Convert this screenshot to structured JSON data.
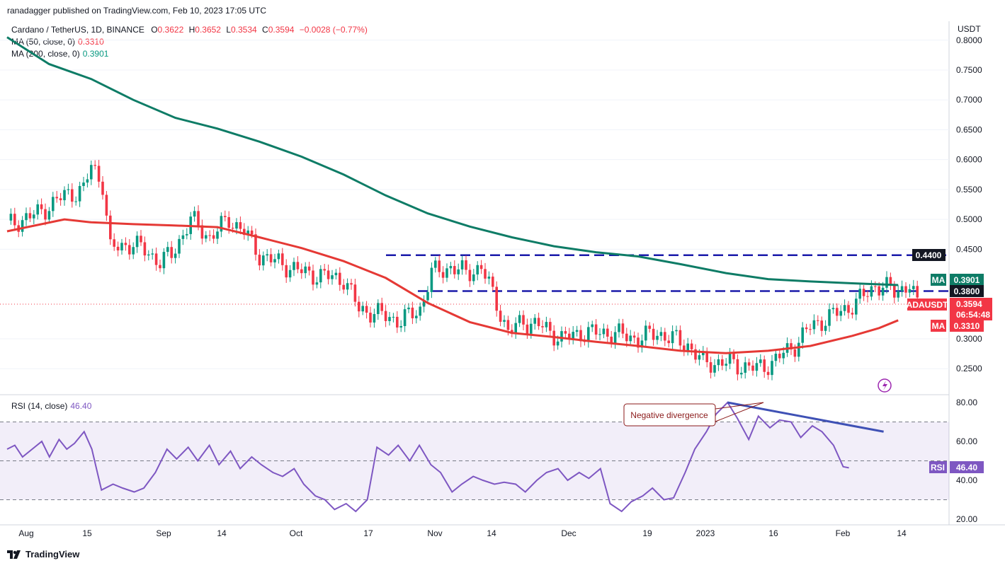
{
  "header": {
    "publisher": "ranadagger published on TradingView.com, Feb 10, 2023 17:05 UTC",
    "symbol": "Cardano / TetherUS, 1D, BINANCE",
    "o_label": "O",
    "o_value": "0.3622",
    "h_label": "H",
    "h_value": "0.3652",
    "l_label": "L",
    "l_value": "0.3534",
    "c_label": "C",
    "c_value": "0.3594",
    "change": "−0.0028 (−0.77%)",
    "ma50_label": "MA (50, close, 0)",
    "ma50_value": "0.3310",
    "ma200_label": "MA (200, close, 0)",
    "ma200_value": "0.3901",
    "rsi_label": "RSI (14, close)",
    "rsi_value": "46.40"
  },
  "colors": {
    "up": "#089981",
    "down": "#f23645",
    "ma50": "#e53935",
    "ma200": "#0e7c66",
    "rsi": "#7e57c2",
    "level": "#1a1aaa",
    "divergence": "#3f51b5"
  },
  "icons": {
    "logo": "tradingview-logo-icon",
    "replay": "lightning-circle-icon"
  },
  "price_axis": {
    "unit": "USDT",
    "ticks": [
      "0.8000",
      "0.7500",
      "0.7000",
      "0.6500",
      "0.6000",
      "0.5500",
      "0.5000",
      "0.4500",
      "0.3000",
      "0.2500"
    ],
    "tags": {
      "level_high": "0.4400",
      "ma200_label": "MA",
      "ma200_value": "0.3901",
      "level_mid": "0.3800",
      "symbol": "ADAUSDT",
      "last": "0.3594",
      "countdown": "06:54:48",
      "ma50_label": "MA",
      "ma50_value": "0.3310"
    }
  },
  "rsi_axis": {
    "ticks": [
      "80.00",
      "60.00",
      "40.00",
      "20.00"
    ],
    "tag_label": "RSI",
    "tag_value": "46.40"
  },
  "time_axis": {
    "ticks": [
      "Aug",
      "15",
      "Sep",
      "14",
      "Oct",
      "17",
      "Nov",
      "14",
      "Dec",
      "19",
      "2023",
      "16",
      "Feb",
      "14"
    ]
  },
  "annotation": "Negative divergence",
  "footer": {
    "brand": "TradingView"
  },
  "chart_data": {
    "type": "candlestick",
    "symbol": "ADAUSDT",
    "x": [
      "2022-08-01",
      "2023-02-10"
    ],
    "y_price_range": [
      0.23,
      0.81
    ],
    "levels": [
      0.44,
      0.38
    ],
    "ma50_points": [
      [
        0,
        0.48
      ],
      [
        15,
        0.5
      ],
      [
        22,
        0.495
      ],
      [
        33,
        0.492
      ],
      [
        43,
        0.49
      ],
      [
        55,
        0.487
      ],
      [
        66,
        0.47
      ],
      [
        77,
        0.452
      ],
      [
        88,
        0.43
      ],
      [
        99,
        0.402
      ],
      [
        110,
        0.36
      ],
      [
        121,
        0.328
      ],
      [
        132,
        0.31
      ],
      [
        143,
        0.303
      ],
      [
        154,
        0.295
      ],
      [
        165,
        0.288
      ],
      [
        176,
        0.28
      ],
      [
        188,
        0.276
      ],
      [
        199,
        0.28
      ],
      [
        210,
        0.288
      ],
      [
        221,
        0.305
      ],
      [
        228,
        0.318
      ],
      [
        233,
        0.331
      ]
    ],
    "ma200_points": [
      [
        0,
        0.805
      ],
      [
        11,
        0.76
      ],
      [
        22,
        0.735
      ],
      [
        33,
        0.7
      ],
      [
        44,
        0.67
      ],
      [
        55,
        0.652
      ],
      [
        66,
        0.63
      ],
      [
        77,
        0.605
      ],
      [
        88,
        0.575
      ],
      [
        99,
        0.54
      ],
      [
        110,
        0.51
      ],
      [
        121,
        0.488
      ],
      [
        132,
        0.47
      ],
      [
        143,
        0.455
      ],
      [
        154,
        0.445
      ],
      [
        165,
        0.438
      ],
      [
        176,
        0.425
      ],
      [
        188,
        0.41
      ],
      [
        199,
        0.4
      ],
      [
        210,
        0.396
      ],
      [
        221,
        0.393
      ],
      [
        233,
        0.39
      ]
    ],
    "rsi_range": [
      20,
      80
    ],
    "rsi_bands": [
      70,
      50,
      30
    ],
    "rsi_points": [
      [
        0,
        56
      ],
      [
        4,
        58
      ],
      [
        8,
        52
      ],
      [
        13,
        56
      ],
      [
        18,
        60
      ],
      [
        22,
        52
      ],
      [
        27,
        61
      ],
      [
        31,
        56
      ],
      [
        35,
        59
      ],
      [
        40,
        65
      ],
      [
        44,
        56
      ],
      [
        49,
        35
      ],
      [
        55,
        38
      ],
      [
        60,
        36
      ],
      [
        66,
        34
      ],
      [
        71,
        36
      ],
      [
        77,
        44
      ],
      [
        83,
        56
      ],
      [
        88,
        51
      ],
      [
        94,
        57
      ],
      [
        99,
        50
      ],
      [
        105,
        58
      ],
      [
        110,
        48
      ],
      [
        116,
        55
      ],
      [
        121,
        46
      ],
      [
        127,
        52
      ],
      [
        132,
        48
      ],
      [
        138,
        44
      ],
      [
        143,
        42
      ],
      [
        149,
        46
      ],
      [
        154,
        38
      ],
      [
        160,
        32
      ],
      [
        165,
        30
      ],
      [
        170,
        25
      ],
      [
        176,
        28
      ],
      [
        181,
        24
      ],
      [
        187,
        30
      ],
      [
        192,
        57
      ],
      [
        198,
        53
      ],
      [
        203,
        58
      ],
      [
        209,
        50
      ],
      [
        214,
        58
      ],
      [
        220,
        48
      ],
      [
        225,
        44
      ],
      [
        231,
        34
      ],
      [
        236,
        38
      ],
      [
        242,
        42
      ],
      [
        247,
        40
      ],
      [
        253,
        38
      ],
      [
        258,
        39
      ],
      [
        264,
        38
      ],
      [
        269,
        34
      ],
      [
        275,
        40
      ],
      [
        280,
        44
      ],
      [
        286,
        46
      ],
      [
        291,
        40
      ],
      [
        297,
        44
      ],
      [
        302,
        41
      ],
      [
        308,
        46
      ],
      [
        313,
        28
      ],
      [
        319,
        24
      ],
      [
        324,
        29
      ],
      [
        330,
        32
      ],
      [
        335,
        36
      ],
      [
        341,
        30
      ],
      [
        346,
        31
      ],
      [
        352,
        44
      ],
      [
        357,
        56
      ],
      [
        363,
        65
      ],
      [
        368,
        74
      ],
      [
        374,
        80
      ],
      [
        379,
        72
      ],
      [
        385,
        61
      ],
      [
        390,
        73
      ],
      [
        396,
        67
      ],
      [
        401,
        71
      ],
      [
        407,
        70
      ],
      [
        412,
        62
      ],
      [
        418,
        68
      ],
      [
        423,
        65
      ],
      [
        429,
        58
      ],
      [
        434,
        47
      ],
      [
        437,
        46.4
      ]
    ],
    "rsi_divergence": [
      [
        374,
        80
      ],
      [
        455,
        65
      ]
    ],
    "price_divergence_note": "Negative divergence"
  }
}
